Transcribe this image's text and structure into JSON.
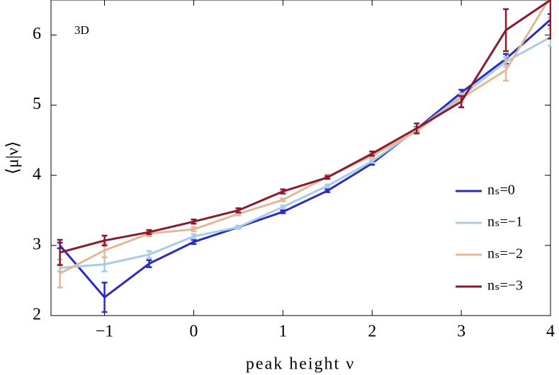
{
  "chart_data": {
    "type": "line",
    "annotation": "3D",
    "x_label": "peak height ν",
    "y_label": "⟨μ|ν⟩",
    "x": [
      -1.5,
      -1,
      -0.5,
      0,
      0.5,
      1,
      1.5,
      2,
      2.5,
      3,
      3.5,
      4
    ],
    "xlim": [
      -1.6,
      4
    ],
    "ylim": [
      2,
      6.5
    ],
    "xticks": [
      {
        "value": -1,
        "label": "−1"
      },
      0,
      1,
      2,
      3,
      4
    ],
    "yticks": [
      2,
      3,
      4,
      5,
      6
    ],
    "legend": "right",
    "series": [
      {
        "name": "nₛ=0",
        "color": "#2b2bbf",
        "values": [
          3.0,
          2.26,
          2.74,
          3.05,
          3.26,
          3.48,
          3.78,
          4.17,
          4.66,
          5.18,
          5.66,
          6.22
        ],
        "errors": [
          0.04,
          0.21,
          0.05,
          0.03,
          0.02,
          0.02,
          0.02,
          0.02,
          0.03,
          0.04,
          0.07,
          0.08
        ]
      },
      {
        "name": "nₛ=−1",
        "color": "#a9cbea",
        "values": [
          2.68,
          2.73,
          2.87,
          3.13,
          3.26,
          3.55,
          3.85,
          4.2,
          4.65,
          5.13,
          5.62,
          5.97
        ],
        "errors": [
          0.05,
          0.1,
          0.05,
          0.03,
          0.02,
          0.02,
          0.02,
          0.02,
          0.03,
          0.04,
          0.07,
          0.12
        ]
      },
      {
        "name": "nₛ=−2",
        "color": "#e3b897",
        "values": [
          2.6,
          2.93,
          3.17,
          3.23,
          3.45,
          3.65,
          3.98,
          4.28,
          4.63,
          5.1,
          5.5,
          6.55
        ],
        "errors": [
          0.2,
          0.1,
          0.04,
          0.03,
          0.02,
          0.02,
          0.03,
          0.03,
          0.04,
          0.06,
          0.15,
          0.3
        ]
      },
      {
        "name": "nₛ=−3",
        "color": "#8b1a2f",
        "values": [
          2.9,
          3.07,
          3.19,
          3.34,
          3.5,
          3.77,
          3.97,
          4.31,
          4.67,
          5.05,
          6.07,
          6.5
        ],
        "errors": [
          0.18,
          0.07,
          0.03,
          0.03,
          0.03,
          0.03,
          0.02,
          0.03,
          0.07,
          0.08,
          0.3,
          0.55
        ]
      }
    ]
  }
}
